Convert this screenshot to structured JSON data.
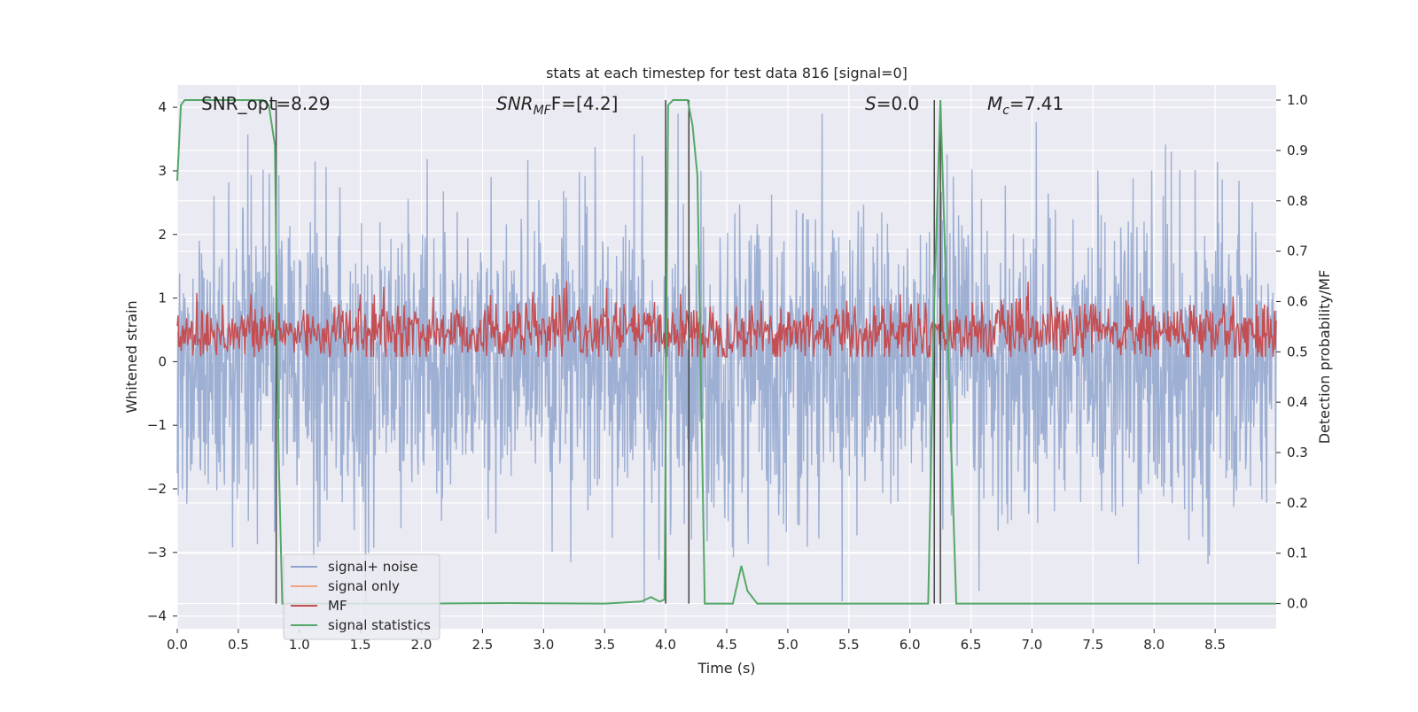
{
  "chart_data": {
    "type": "line",
    "title": "stats at each timestep for test data 816 [signal=0]",
    "xlabel": "Time (s)",
    "ylabel": "Whitened strain",
    "ylabel_right": "Detection probability/MF",
    "xlim": [
      0.0,
      9.0
    ],
    "ylim": [
      -4.2,
      4.35
    ],
    "ylim_right": [
      -0.05,
      1.03
    ],
    "x_ticks": [
      "0.0",
      "0.5",
      "1.0",
      "1.5",
      "2.0",
      "2.5",
      "3.0",
      "3.5",
      "4.0",
      "4.5",
      "5.0",
      "5.5",
      "6.0",
      "6.5",
      "7.0",
      "7.5",
      "8.0",
      "8.5"
    ],
    "y_ticks": [
      "4",
      "3",
      "2",
      "1",
      "0",
      "−1",
      "−2",
      "−3",
      "−4"
    ],
    "y_ticks_right": [
      "1.0",
      "0.9",
      "0.8",
      "0.7",
      "0.6",
      "0.5",
      "0.4",
      "0.3",
      "0.2",
      "0.1",
      "0.0"
    ],
    "grid": true,
    "legend_position": "lower-left",
    "annotations": {
      "snr_opt": "SNR_opt=8.29",
      "snr_mf_main": "SNR",
      "snr_mf_sub": "MF",
      "snr_mf_rest": "F=[4.2]",
      "s_main": "S",
      "s_rest": "=0.0",
      "mc_main": "M",
      "mc_sub": "c",
      "mc_rest": "=7.41"
    },
    "series": [
      {
        "name": "signal+ noise",
        "color": "#8fa5ce",
        "style": "noise",
        "envelope": {
          "typical_amplitude": 1.2,
          "max_positive": 3.9,
          "max_negative": -3.8
        },
        "fs": 256
      },
      {
        "name": "signal only",
        "color": "#f1a484",
        "values_note": "flat at 0"
      },
      {
        "name": "MF",
        "color": "#c44e52",
        "axis": "right",
        "band": [
          0.5,
          0.58
        ],
        "peak": 0.64
      },
      {
        "name": "signal statistics",
        "color": "#55a868",
        "axis": "right",
        "x": [
          0.0,
          0.03,
          0.06,
          0.12,
          0.4,
          0.6,
          0.7,
          0.75,
          0.8,
          0.83,
          0.86,
          1.0,
          1.2,
          2.0,
          2.7,
          3.5,
          3.8,
          3.88,
          3.95,
          3.99,
          4.02,
          4.06,
          4.12,
          4.18,
          4.22,
          4.26,
          4.32,
          4.55,
          4.62,
          4.67,
          4.75,
          5.0,
          5.5,
          6.0,
          6.15,
          6.2,
          6.25,
          6.3,
          6.38,
          6.6,
          7.0,
          8.0,
          9.0
        ],
        "y": [
          0.84,
          0.99,
          1.0,
          1.0,
          1.0,
          1.0,
          1.0,
          0.99,
          0.91,
          0.3,
          0.0,
          0.0,
          0.0,
          0.0,
          0.001,
          0.0,
          0.004,
          0.013,
          0.004,
          0.008,
          0.99,
          1.0,
          1.0,
          1.0,
          0.95,
          0.85,
          0.0,
          0.0,
          0.075,
          0.025,
          0.0,
          0.0,
          0.0,
          0.0,
          0.0,
          0.6,
          1.0,
          0.6,
          0.0,
          0.0,
          0.0,
          0.0,
          0.0
        ]
      }
    ],
    "vertical_markers": [
      0.81,
      4.0,
      4.19,
      6.2,
      6.25
    ]
  },
  "legend": [
    {
      "label": "signal+ noise",
      "color": "#8fa5ce"
    },
    {
      "label": "signal only",
      "color": "#f1a484"
    },
    {
      "label": "MF",
      "color": "#c44e52"
    },
    {
      "label": "signal statistics",
      "color": "#55a868"
    }
  ],
  "colors": {
    "plot_background": "#eaeaf2",
    "grid": "#ffffff",
    "marker_lines": "#444444"
  }
}
